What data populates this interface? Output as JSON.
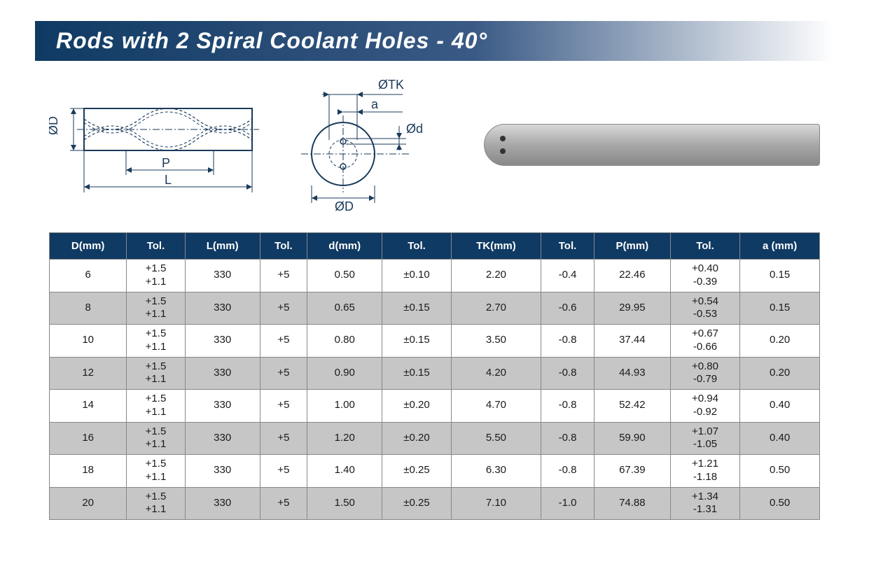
{
  "title": "Rods with 2 Spiral Coolant Holes - 40°",
  "title_bg_gradient": [
    "#0f3a63",
    "#3a5a85",
    "#ffffff"
  ],
  "diagram_labels": {
    "D_side": "ØD",
    "P": "P",
    "L": "L",
    "TK": "ØTK",
    "a": "a",
    "d": "Ød",
    "D_cross": "ØD"
  },
  "photo": {
    "rod_gradient": [
      "#d8d8d8",
      "#a8a8a8",
      "#888888"
    ]
  },
  "table": {
    "header_bg": "#0f3a63",
    "header_fg": "#ffffff",
    "row_alt_bg": "#c6c6c6",
    "row_bg": "#ffffff",
    "border_color": "#808080",
    "columns": [
      "D(mm)",
      "Tol.",
      "L(mm)",
      "Tol.",
      "d(mm)",
      "Tol.",
      "TK(mm)",
      "Tol.",
      "P(mm)",
      "Tol.",
      "a (mm)"
    ],
    "rows": [
      [
        "6",
        "+1.5\n+1.1",
        "330",
        "+5",
        "0.50",
        "±0.10",
        "2.20",
        "-0.4",
        "22.46",
        "+0.40\n-0.39",
        "0.15"
      ],
      [
        "8",
        "+1.5\n+1.1",
        "330",
        "+5",
        "0.65",
        "±0.15",
        "2.70",
        "-0.6",
        "29.95",
        "+0.54\n-0.53",
        "0.15"
      ],
      [
        "10",
        "+1.5\n+1.1",
        "330",
        "+5",
        "0.80",
        "±0.15",
        "3.50",
        "-0.8",
        "37.44",
        "+0.67\n-0.66",
        "0.20"
      ],
      [
        "12",
        "+1.5\n+1.1",
        "330",
        "+5",
        "0.90",
        "±0.15",
        "4.20",
        "-0.8",
        "44.93",
        "+0.80\n-0.79",
        "0.20"
      ],
      [
        "14",
        "+1.5\n+1.1",
        "330",
        "+5",
        "1.00",
        "±0.20",
        "4.70",
        "-0.8",
        "52.42",
        "+0.94\n-0.92",
        "0.40"
      ],
      [
        "16",
        "+1.5\n+1.1",
        "330",
        "+5",
        "1.20",
        "±0.20",
        "5.50",
        "-0.8",
        "59.90",
        "+1.07\n-1.05",
        "0.40"
      ],
      [
        "18",
        "+1.5\n+1.1",
        "330",
        "+5",
        "1.40",
        "±0.25",
        "6.30",
        "-0.8",
        "67.39",
        "+1.21\n-1.18",
        "0.50"
      ],
      [
        "20",
        "+1.5\n+1.1",
        "330",
        "+5",
        "1.50",
        "±0.25",
        "7.10",
        "-1.0",
        "74.88",
        "+1.34\n-1.31",
        "0.50"
      ]
    ]
  }
}
